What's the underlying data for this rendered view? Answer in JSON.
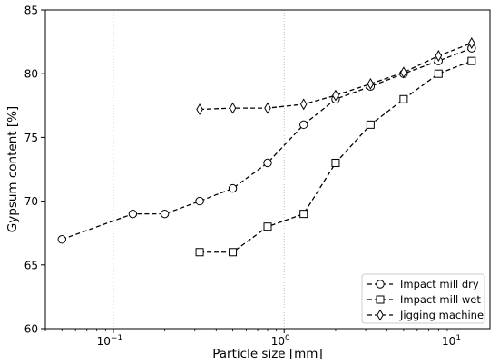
{
  "chart_data": {
    "type": "line",
    "title": "",
    "xlabel": "Particle size [mm]",
    "ylabel": "Gypsum content [%]",
    "x_scale": "log",
    "xlim": [
      0.04,
      16
    ],
    "ylim": [
      60,
      85
    ],
    "y_ticks": [
      60,
      65,
      70,
      75,
      80,
      85
    ],
    "x_major_ticks": [
      {
        "value": 0.1,
        "label": "10",
        "exp": "−1"
      },
      {
        "value": 1,
        "label": "10",
        "exp": "0"
      },
      {
        "value": 10,
        "label": "10",
        "exp": "1"
      }
    ],
    "grid": "vertical dotted at decades",
    "legend_position": "lower-right",
    "series": [
      {
        "name": "Impact mill dry",
        "marker": "circle",
        "x": [
          0.05,
          0.13,
          0.2,
          0.32,
          0.5,
          0.8,
          1.3,
          2.0,
          3.2,
          5.0,
          8.0,
          12.5
        ],
        "values": [
          67,
          69,
          69,
          70,
          71,
          73,
          76,
          78,
          79,
          80,
          81,
          82
        ]
      },
      {
        "name": "Impact mill wet",
        "marker": "square",
        "x": [
          0.32,
          0.5,
          0.8,
          1.3,
          2.0,
          3.2,
          5.0,
          8.0,
          12.5
        ],
        "values": [
          66,
          66,
          68,
          69,
          73,
          76,
          78,
          80,
          81
        ]
      },
      {
        "name": "Jigging machine",
        "marker": "thin_diamond",
        "x": [
          0.32,
          0.5,
          0.8,
          1.3,
          2.0,
          3.2,
          5.0,
          8.0,
          12.5
        ],
        "values": [
          77.2,
          77.3,
          77.3,
          77.6,
          78.3,
          79.2,
          80.1,
          81.4,
          82.4
        ]
      }
    ]
  }
}
